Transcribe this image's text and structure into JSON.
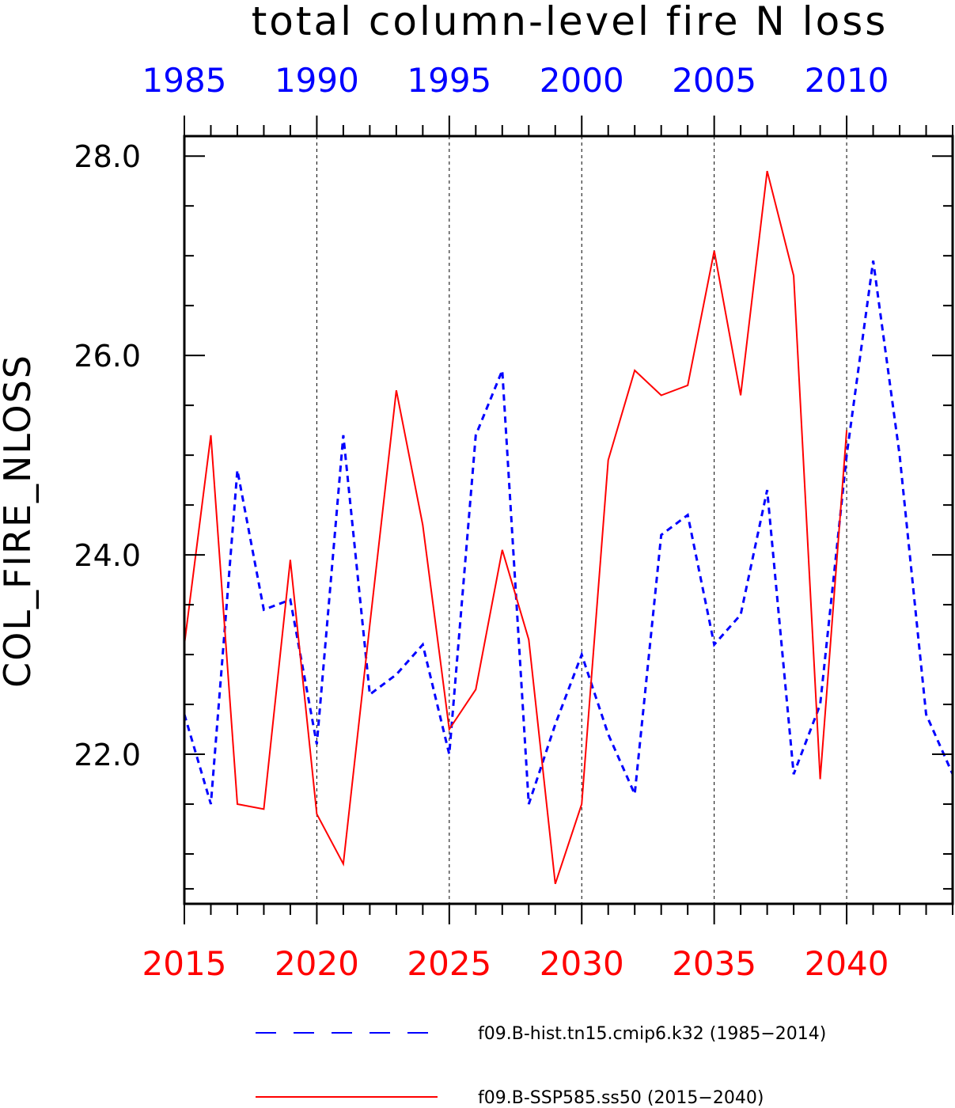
{
  "chart_data": {
    "type": "line",
    "title": "total column-level fire N loss",
    "ylabel": "COL_FIRE_NLOSS",
    "ylim": [
      20.5,
      28.2
    ],
    "yticks": [
      {
        "value": 22.0,
        "label": "22.0"
      },
      {
        "value": 24.0,
        "label": "24.0"
      },
      {
        "value": 26.0,
        "label": "26.0"
      },
      {
        "value": 28.0,
        "label": "28.0"
      }
    ],
    "grid": "dashed vertical lines at labeled years",
    "x_bottom": {
      "range": [
        2015,
        2044
      ],
      "color": "#ff0000",
      "ticks": [
        2015,
        2020,
        2025,
        2030,
        2035,
        2040
      ],
      "labels": [
        "2015",
        "2020",
        "2025",
        "2030",
        "2035",
        "2040"
      ]
    },
    "x_top": {
      "range": [
        1985,
        2014
      ],
      "color": "#0000ff",
      "ticks": [
        1985,
        1990,
        1995,
        2000,
        2005,
        2010
      ],
      "labels": [
        "1985",
        "1990",
        "1995",
        "2000",
        "2005",
        "2010"
      ]
    },
    "series": [
      {
        "name": "f09.B-hist.tn15.cmip6.k32 (1985-2014)",
        "axis": "top",
        "color": "#0000ff",
        "style": "dashed",
        "x": [
          1985,
          1986,
          1987,
          1988,
          1989,
          1990,
          1991,
          1992,
          1993,
          1994,
          1995,
          1996,
          1997,
          1998,
          1999,
          2000,
          2001,
          2002,
          2003,
          2004,
          2005,
          2006,
          2007,
          2008,
          2009,
          2010,
          2011,
          2012,
          2013,
          2014
        ],
        "values": [
          22.4,
          21.5,
          24.85,
          23.45,
          23.55,
          22.1,
          25.2,
          22.6,
          22.8,
          23.1,
          22.0,
          25.2,
          25.85,
          21.5,
          22.3,
          23.0,
          22.2,
          21.6,
          24.2,
          24.4,
          23.1,
          23.4,
          24.65,
          21.8,
          22.5,
          25.0,
          26.95,
          25.0,
          22.4,
          21.8
        ]
      },
      {
        "name": "f09.B-SSP585.ss50 (2015-2040)",
        "axis": "bottom",
        "color": "#ff0000",
        "style": "solid",
        "x": [
          2015,
          2016,
          2017,
          2018,
          2019,
          2020,
          2021,
          2022,
          2023,
          2024,
          2025,
          2026,
          2027,
          2028,
          2029,
          2030,
          2031,
          2032,
          2033,
          2034,
          2035,
          2036,
          2037,
          2038,
          2039,
          2040
        ],
        "values": [
          23.1,
          25.2,
          21.5,
          21.45,
          23.95,
          21.4,
          20.9,
          23.3,
          25.65,
          24.3,
          22.25,
          22.65,
          24.05,
          23.15,
          20.7,
          21.5,
          24.95,
          25.85,
          25.6,
          25.7,
          27.05,
          25.6,
          27.85,
          26.8,
          21.75,
          25.25
        ]
      }
    ],
    "legend": [
      {
        "label": "f09.B-hist.tn15.cmip6.k32 (1985−2014)",
        "style": "dashed",
        "color": "#0000ff"
      },
      {
        "label": "f09.B-SSP585.ss50 (2015−2040)",
        "style": "solid",
        "color": "#ff0000"
      }
    ],
    "legend_placement": "bottom"
  }
}
